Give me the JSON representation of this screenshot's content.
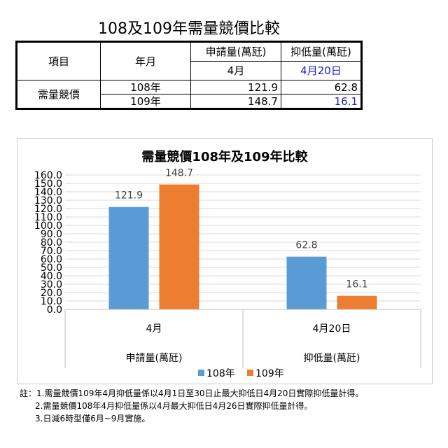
{
  "page_title": "108及109年需量競價比較",
  "table": {
    "h_item": "項目",
    "h_month": "年月",
    "h_col1": "申請量(萬瓩)",
    "h_col2": "抑低量(萬瓩)",
    "sub_col1": "4月",
    "sub_col2": "4月20日",
    "row_label": "需量競價",
    "rows": [
      {
        "year": "108年",
        "v1": "121.9",
        "v2": "62.8"
      },
      {
        "year": "109年",
        "v1": "148.7",
        "v2": "16.1"
      }
    ]
  },
  "chart_data": {
    "type": "bar",
    "title": "需量競價108年及109年比較",
    "categories": [
      "4月",
      "4月20日"
    ],
    "groups": [
      "申請量(萬瓩)",
      "抑低量(萬瓩)"
    ],
    "series": [
      {
        "name": "108年",
        "values": [
          121.9,
          62.8
        ],
        "color": "#5b9bd5"
      },
      {
        "name": "109年",
        "values": [
          148.7,
          16.1
        ],
        "color": "#ed7d31"
      }
    ],
    "ylim": [
      0,
      160
    ],
    "ytick_step": 10,
    "ytick_labels": [
      "0.0",
      "10.0",
      "20.0",
      "30.0",
      "40.0",
      "50.0",
      "60.0",
      "70.0",
      "80.0",
      "90.0",
      "100.0",
      "110.0",
      "120.0",
      "130.0",
      "140.0",
      "150.0",
      "160.0"
    ],
    "data_labels": [
      "121.9",
      "148.7",
      "62.8",
      "16.1"
    ],
    "grid": true,
    "legend_position": "bottom"
  },
  "notes": [
    "註：1.需量競價109年4月抑低量係以4月1日至30日止最大抑低日4月20日實際抑低量計得。",
    "2.需量競價108年4月抑低量係以4月最大抑低日4月26日實際抑低量計得。",
    "3.日減6時型僅6月~9月實施。"
  ]
}
